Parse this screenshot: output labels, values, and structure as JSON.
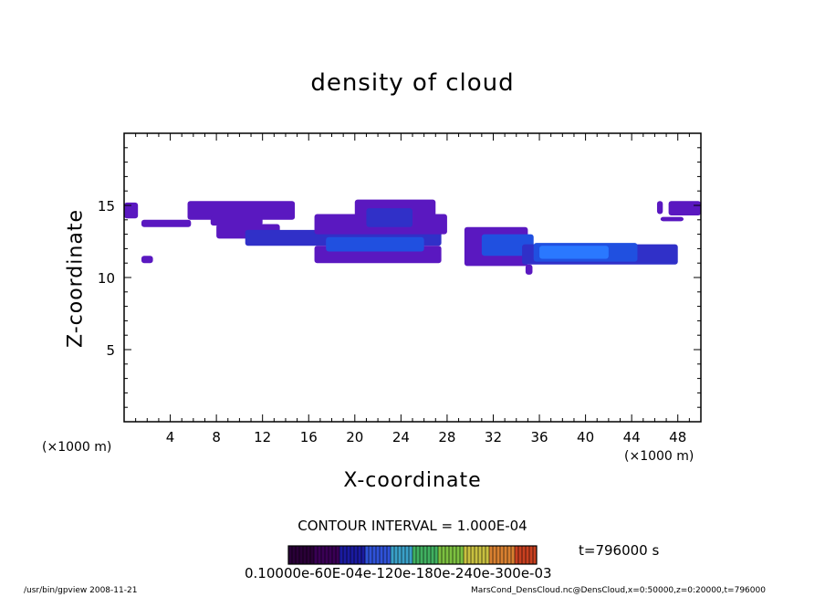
{
  "chart_data": {
    "type": "heatmap",
    "title": "density of cloud",
    "xlabel": "X-coordinate",
    "ylabel": "Z-coordinate",
    "x_unit_label": "(×1000 m)",
    "xlim": [
      0,
      50
    ],
    "ylim": [
      0,
      20
    ],
    "x_ticks": [
      4,
      8,
      12,
      16,
      20,
      24,
      28,
      32,
      36,
      40,
      44,
      48
    ],
    "y_ticks": [
      5,
      10,
      15
    ],
    "contour_interval": "CONTOUR INTERVAL = 1.000E-04",
    "time": "t=796000 s",
    "colorbar_labels": "0.10000e-60E-04e-120e-180e-240e-300e-03",
    "colorbar_colors": [
      "#2a0038",
      "#3a0055",
      "#1a1aa0",
      "#2f52d8",
      "#3aa0c8",
      "#40b060",
      "#7cc040",
      "#c8c040",
      "#d88030",
      "#c84020"
    ],
    "cloud_regions": [
      {
        "x0": 0.0,
        "x1": 1.2,
        "z0": 14.1,
        "z1": 15.2,
        "level": 1
      },
      {
        "x0": 1.5,
        "x1": 5.8,
        "z0": 13.5,
        "z1": 14.0,
        "level": 1
      },
      {
        "x0": 5.5,
        "x1": 14.8,
        "z0": 14.0,
        "z1": 15.3,
        "level": 1
      },
      {
        "x0": 7.5,
        "x1": 12.0,
        "z0": 13.6,
        "z1": 14.3,
        "level": 1
      },
      {
        "x0": 8.0,
        "x1": 13.5,
        "z0": 12.7,
        "z1": 13.7,
        "level": 1
      },
      {
        "x0": 10.5,
        "x1": 27.5,
        "z0": 12.2,
        "z1": 13.3,
        "level": 2
      },
      {
        "x0": 16.5,
        "x1": 28.0,
        "z0": 13.0,
        "z1": 14.4,
        "level": 1
      },
      {
        "x0": 20.0,
        "x1": 27.0,
        "z0": 14.2,
        "z1": 15.4,
        "level": 1
      },
      {
        "x0": 16.5,
        "x1": 27.5,
        "z0": 11.0,
        "z1": 12.2,
        "level": 1
      },
      {
        "x0": 17.5,
        "x1": 26.0,
        "z0": 11.8,
        "z1": 12.8,
        "level": 3
      },
      {
        "x0": 21.0,
        "x1": 25.0,
        "z0": 13.5,
        "z1": 14.8,
        "level": 2
      },
      {
        "x0": 1.5,
        "x1": 2.5,
        "z0": 11.0,
        "z1": 11.5,
        "level": 1
      },
      {
        "x0": 29.5,
        "x1": 35.0,
        "z0": 10.8,
        "z1": 13.5,
        "level": 1
      },
      {
        "x0": 31.0,
        "x1": 35.5,
        "z0": 11.5,
        "z1": 13.0,
        "level": 3
      },
      {
        "x0": 34.5,
        "x1": 48.0,
        "z0": 10.9,
        "z1": 12.3,
        "level": 2
      },
      {
        "x0": 35.5,
        "x1": 44.5,
        "z0": 11.1,
        "z1": 12.4,
        "level": 3
      },
      {
        "x0": 36.0,
        "x1": 42.0,
        "z0": 11.3,
        "z1": 12.2,
        "level": 4
      },
      {
        "x0": 34.8,
        "x1": 35.4,
        "z0": 10.2,
        "z1": 10.9,
        "level": 1
      },
      {
        "x0": 46.2,
        "x1": 46.7,
        "z0": 14.4,
        "z1": 15.3,
        "level": 1
      },
      {
        "x0": 47.2,
        "x1": 50.0,
        "z0": 14.3,
        "z1": 15.3,
        "level": 1
      },
      {
        "x0": 46.5,
        "x1": 48.5,
        "z0": 13.9,
        "z1": 14.2,
        "level": 1
      }
    ],
    "level_colors": [
      "#6a10a8",
      "#5a18c0",
      "#3030c8",
      "#2050e0",
      "#2a78ff"
    ]
  },
  "footer": {
    "left": "/usr/bin/gpview   2008-11-21",
    "right": "MarsCond_DensCloud.nc@DensCloud,x=0:50000,z=0:20000,t=796000"
  }
}
